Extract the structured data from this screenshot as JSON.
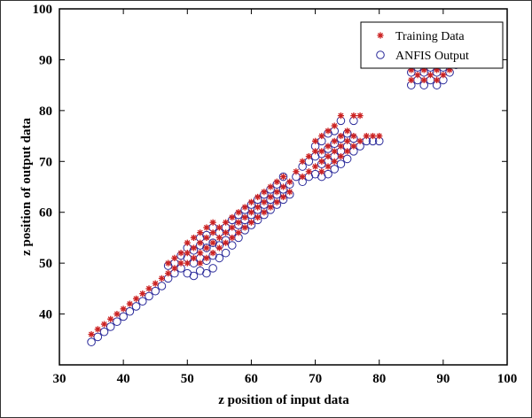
{
  "chart_data": {
    "type": "scatter",
    "title": "",
    "xlabel": "z position of input data",
    "ylabel": "z position of output data",
    "xlim": [
      30,
      100
    ],
    "ylim": [
      30,
      100
    ],
    "x_ticks": [
      30,
      40,
      50,
      60,
      70,
      80,
      90,
      100
    ],
    "y_ticks": [
      40,
      50,
      60,
      70,
      80,
      90,
      100
    ],
    "grid": false,
    "legend_position": "top-right",
    "series": [
      {
        "name": "Training Data",
        "marker": "asterisk",
        "color": "#cc2222",
        "points": [
          [
            35,
            36
          ],
          [
            36,
            37
          ],
          [
            37,
            38
          ],
          [
            38,
            39
          ],
          [
            39,
            40
          ],
          [
            40,
            41
          ],
          [
            41,
            42
          ],
          [
            42,
            43
          ],
          [
            43,
            44
          ],
          [
            44,
            45
          ],
          [
            45,
            46
          ],
          [
            46,
            47
          ],
          [
            47,
            48
          ],
          [
            47,
            50
          ],
          [
            48,
            49
          ],
          [
            48,
            51
          ],
          [
            49,
            50
          ],
          [
            49,
            52
          ],
          [
            50,
            50
          ],
          [
            50,
            52
          ],
          [
            50,
            54
          ],
          [
            51,
            51
          ],
          [
            51,
            53
          ],
          [
            51,
            55
          ],
          [
            52,
            50
          ],
          [
            52,
            52
          ],
          [
            52,
            54
          ],
          [
            52,
            56
          ],
          [
            53,
            51
          ],
          [
            53,
            53
          ],
          [
            53,
            55
          ],
          [
            53,
            57
          ],
          [
            54,
            52
          ],
          [
            54,
            54
          ],
          [
            54,
            56
          ],
          [
            54,
            58
          ],
          [
            55,
            53
          ],
          [
            55,
            55
          ],
          [
            55,
            57
          ],
          [
            56,
            54
          ],
          [
            56,
            56
          ],
          [
            56,
            58
          ],
          [
            57,
            55
          ],
          [
            57,
            57
          ],
          [
            57,
            59
          ],
          [
            58,
            56
          ],
          [
            58,
            58
          ],
          [
            58,
            60
          ],
          [
            59,
            57
          ],
          [
            59,
            59
          ],
          [
            59,
            61
          ],
          [
            60,
            58
          ],
          [
            60,
            60
          ],
          [
            60,
            62
          ],
          [
            61,
            59
          ],
          [
            61,
            61
          ],
          [
            61,
            63
          ],
          [
            62,
            60
          ],
          [
            62,
            62
          ],
          [
            62,
            64
          ],
          [
            63,
            61
          ],
          [
            63,
            63
          ],
          [
            63,
            65
          ],
          [
            64,
            62
          ],
          [
            64,
            64
          ],
          [
            64,
            66
          ],
          [
            65,
            63
          ],
          [
            65,
            65
          ],
          [
            65,
            67
          ],
          [
            66,
            64
          ],
          [
            66,
            66
          ],
          [
            67,
            68
          ],
          [
            68,
            67
          ],
          [
            68,
            70
          ],
          [
            69,
            68
          ],
          [
            69,
            71
          ],
          [
            70,
            69
          ],
          [
            70,
            72
          ],
          [
            70,
            74
          ],
          [
            71,
            68
          ],
          [
            71,
            70
          ],
          [
            71,
            72
          ],
          [
            71,
            75
          ],
          [
            72,
            69
          ],
          [
            72,
            71
          ],
          [
            72,
            73
          ],
          [
            72,
            76
          ],
          [
            73,
            70
          ],
          [
            73,
            72
          ],
          [
            73,
            74
          ],
          [
            73,
            77
          ],
          [
            74,
            71
          ],
          [
            74,
            73
          ],
          [
            74,
            75
          ],
          [
            74,
            79
          ],
          [
            75,
            72
          ],
          [
            75,
            74
          ],
          [
            75,
            76
          ],
          [
            76,
            73
          ],
          [
            76,
            75
          ],
          [
            76,
            79
          ],
          [
            77,
            74
          ],
          [
            77,
            79
          ],
          [
            78,
            75
          ],
          [
            79,
            75
          ],
          [
            80,
            75
          ],
          [
            85,
            86
          ],
          [
            85,
            88
          ],
          [
            86,
            87
          ],
          [
            86,
            89
          ],
          [
            87,
            86
          ],
          [
            87,
            88
          ],
          [
            87,
            90
          ],
          [
            88,
            87
          ],
          [
            88,
            89
          ],
          [
            88,
            91
          ],
          [
            89,
            86
          ],
          [
            89,
            88
          ],
          [
            89,
            90
          ],
          [
            89,
            92
          ],
          [
            90,
            87
          ],
          [
            90,
            89
          ],
          [
            90,
            91
          ],
          [
            91,
            88
          ],
          [
            91,
            90
          ],
          [
            92,
            89
          ],
          [
            93,
            90
          ]
        ]
      },
      {
        "name": "ANFIS Output",
        "marker": "circle",
        "color": "#2a2a9a",
        "points": [
          [
            35,
            34.5
          ],
          [
            36,
            35.5
          ],
          [
            37,
            36.5
          ],
          [
            38,
            37.5
          ],
          [
            39,
            38.5
          ],
          [
            40,
            39.5
          ],
          [
            41,
            40.5
          ],
          [
            42,
            41.5
          ],
          [
            43,
            42.5
          ],
          [
            44,
            43.5
          ],
          [
            45,
            44.5
          ],
          [
            46,
            45.5
          ],
          [
            47,
            47
          ],
          [
            47,
            49.5
          ],
          [
            48,
            48
          ],
          [
            48,
            50
          ],
          [
            49,
            49
          ],
          [
            49,
            51.5
          ],
          [
            50,
            48
          ],
          [
            50,
            51
          ],
          [
            50,
            53
          ],
          [
            51,
            47.5
          ],
          [
            51,
            50
          ],
          [
            51,
            52.5
          ],
          [
            52,
            48.5
          ],
          [
            52,
            51
          ],
          [
            52,
            53.5
          ],
          [
            52,
            55
          ],
          [
            53,
            48
          ],
          [
            53,
            50.5
          ],
          [
            53,
            53
          ],
          [
            53,
            55.5
          ],
          [
            54,
            49
          ],
          [
            54,
            51.5
          ],
          [
            54,
            54
          ],
          [
            54,
            57
          ],
          [
            55,
            51
          ],
          [
            55,
            53.5
          ],
          [
            55,
            56
          ],
          [
            56,
            52
          ],
          [
            56,
            54.5
          ],
          [
            56,
            57
          ],
          [
            57,
            53.5
          ],
          [
            57,
            56
          ],
          [
            57,
            58.5
          ],
          [
            58,
            55
          ],
          [
            58,
            57.5
          ],
          [
            58,
            59.5
          ],
          [
            59,
            56.5
          ],
          [
            59,
            58.5
          ],
          [
            59,
            60.5
          ],
          [
            60,
            57.5
          ],
          [
            60,
            59.5
          ],
          [
            60,
            61.5
          ],
          [
            61,
            58.5
          ],
          [
            61,
            60.5
          ],
          [
            61,
            62.5
          ],
          [
            62,
            59.5
          ],
          [
            62,
            61.5
          ],
          [
            62,
            63.5
          ],
          [
            63,
            60.5
          ],
          [
            63,
            62.5
          ],
          [
            63,
            64.5
          ],
          [
            64,
            61.5
          ],
          [
            64,
            63.5
          ],
          [
            64,
            65.5
          ],
          [
            65,
            62.5
          ],
          [
            65,
            64.5
          ],
          [
            65,
            67
          ],
          [
            66,
            63.5
          ],
          [
            66,
            65.5
          ],
          [
            67,
            67
          ],
          [
            68,
            66
          ],
          [
            68,
            69
          ],
          [
            69,
            67
          ],
          [
            69,
            70
          ],
          [
            70,
            67.5
          ],
          [
            70,
            71
          ],
          [
            70,
            73
          ],
          [
            71,
            67
          ],
          [
            71,
            69.5
          ],
          [
            71,
            71.5
          ],
          [
            71,
            74
          ],
          [
            72,
            67.5
          ],
          [
            72,
            70
          ],
          [
            72,
            72.5
          ],
          [
            72,
            75.5
          ],
          [
            73,
            68.5
          ],
          [
            73,
            71
          ],
          [
            73,
            73.5
          ],
          [
            73,
            76
          ],
          [
            74,
            69.5
          ],
          [
            74,
            72
          ],
          [
            74,
            74.5
          ],
          [
            74,
            78
          ],
          [
            75,
            70.5
          ],
          [
            75,
            73
          ],
          [
            75,
            75.5
          ],
          [
            76,
            72
          ],
          [
            76,
            74.5
          ],
          [
            76,
            78
          ],
          [
            77,
            73
          ],
          [
            78,
            74
          ],
          [
            79,
            74
          ],
          [
            80,
            74
          ],
          [
            85,
            85
          ],
          [
            85,
            87.5
          ],
          [
            86,
            86
          ],
          [
            86,
            88.5
          ],
          [
            87,
            85
          ],
          [
            87,
            87.5
          ],
          [
            87,
            90
          ],
          [
            88,
            86
          ],
          [
            88,
            88.5
          ],
          [
            88,
            91
          ],
          [
            89,
            85
          ],
          [
            89,
            87.5
          ],
          [
            89,
            90
          ],
          [
            89,
            92
          ],
          [
            90,
            86
          ],
          [
            90,
            88.5
          ],
          [
            90,
            91
          ],
          [
            91,
            87.5
          ],
          [
            91,
            90
          ],
          [
            92,
            89
          ],
          [
            93,
            90
          ]
        ]
      }
    ]
  }
}
